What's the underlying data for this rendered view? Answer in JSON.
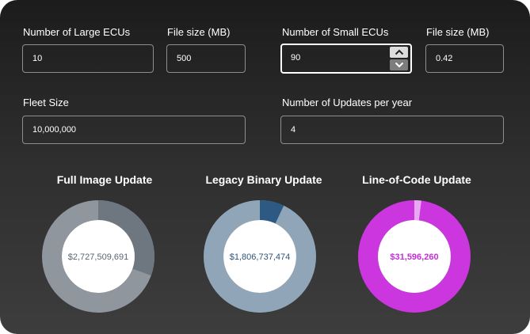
{
  "fields": {
    "large_ecus": {
      "label": "Number of Large ECUs",
      "value": "10"
    },
    "large_size": {
      "label": "File size (MB)",
      "value": "500"
    },
    "small_ecus": {
      "label": "Number of Small ECUs",
      "value": "90"
    },
    "small_size": {
      "label": "File size (MB)",
      "value": "0.42"
    },
    "fleet_size": {
      "label": "Fleet Size",
      "value": "10,000,000"
    },
    "updates_per_year": {
      "label": "Number of Updates per year",
      "value": "4"
    }
  },
  "charts": {
    "full_image": {
      "title": "Full Image Update",
      "value": "$2,727,509,691",
      "fraction": 0.305,
      "ring_color": "#8f969d",
      "segment_color": "#6e7780",
      "value_color": "#5b6570"
    },
    "legacy_binary": {
      "title": "Legacy Binary Update",
      "value": "$1,806,737,474",
      "fraction": 0.07,
      "ring_color": "#90a5b8",
      "segment_color": "#2d5a82",
      "value_color": "#2f5478"
    },
    "line_of_code": {
      "title": "Line-of-Code Update",
      "value": "$31,596,260",
      "fraction": 0.02,
      "ring_color": "#cb36df",
      "segment_color": "#e9a9f2",
      "value_color": "#c22fd6"
    }
  },
  "icons": {
    "stepper_up": "chevron-up-icon",
    "stepper_down": "chevron-down-icon"
  }
}
